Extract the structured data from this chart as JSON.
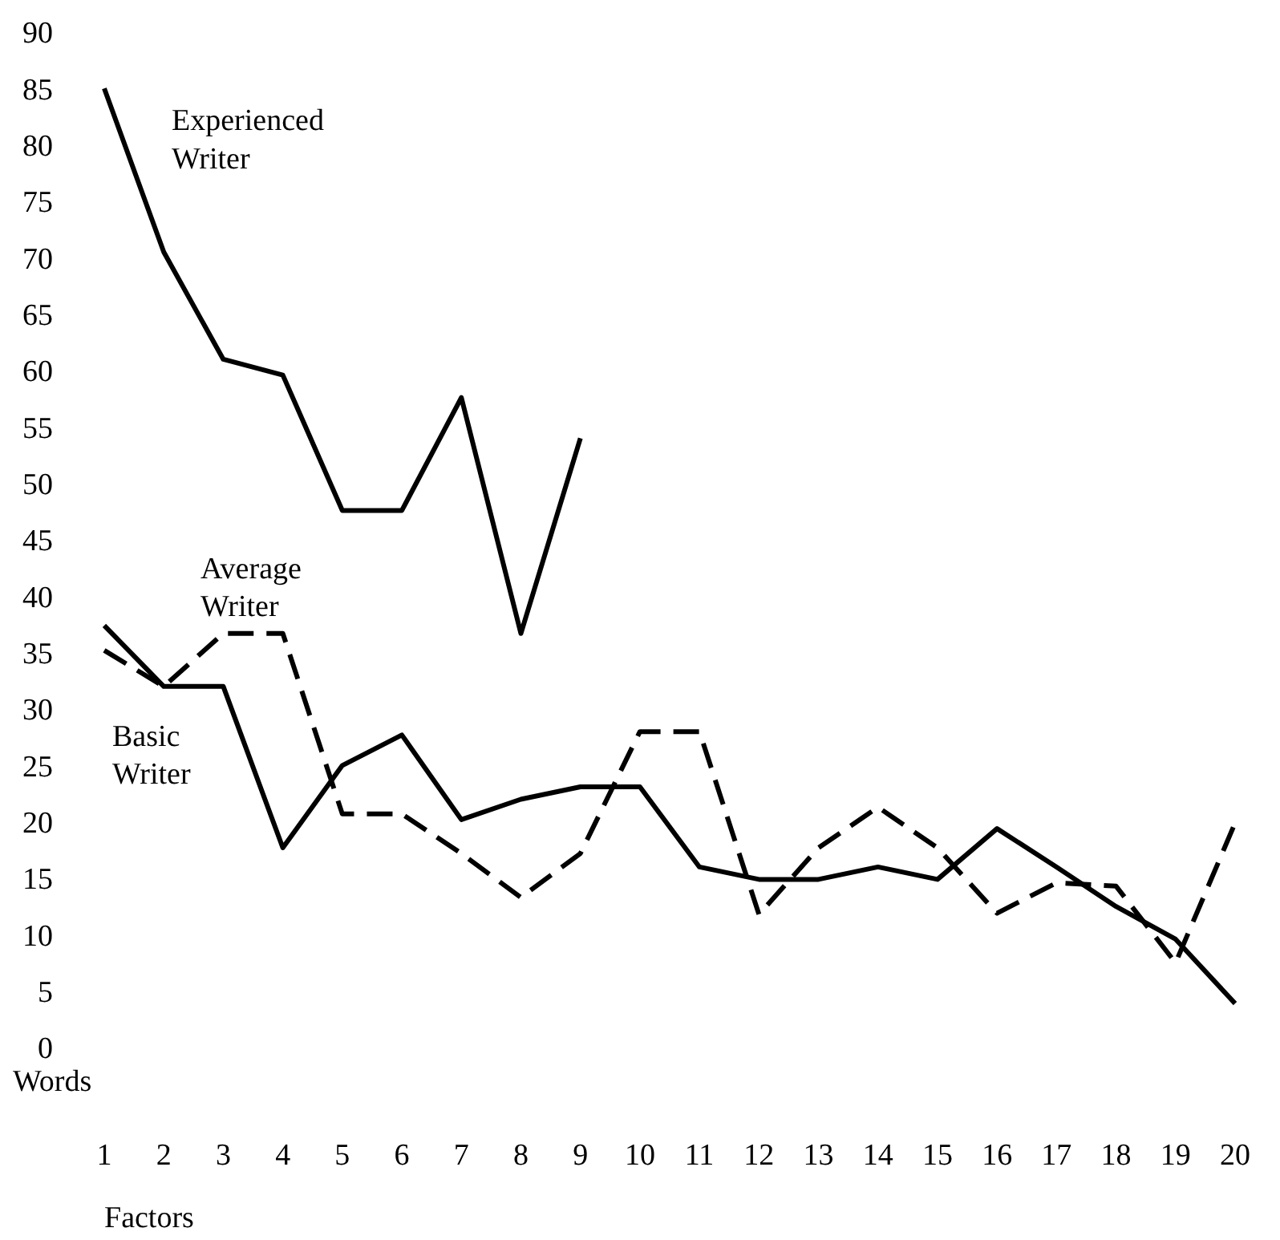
{
  "chart_data": {
    "type": "line",
    "xlabel": "Factors",
    "ylabel": "Words",
    "x": [
      1,
      2,
      3,
      4,
      5,
      6,
      7,
      8,
      9,
      10,
      11,
      12,
      13,
      14,
      15,
      16,
      17,
      18,
      19,
      20
    ],
    "xlim": [
      1,
      20
    ],
    "xticks": [
      1,
      2,
      3,
      4,
      5,
      6,
      7,
      8,
      9,
      10,
      11,
      12,
      13,
      14,
      15,
      16,
      17,
      18,
      19,
      20
    ],
    "ylim": [
      0,
      90
    ],
    "yticks": [
      0,
      5,
      10,
      15,
      20,
      25,
      30,
      35,
      40,
      45,
      50,
      55,
      60,
      65,
      70,
      75,
      80,
      85,
      90
    ],
    "grid": false,
    "legend": false,
    "marker": "none",
    "series": [
      {
        "name": "Experienced Writer",
        "color": "#000000",
        "line_style": "solid",
        "x": [
          1,
          2,
          3,
          4,
          5,
          6,
          7,
          8,
          9
        ],
        "values": [
          85,
          70.5,
          61,
          59.6,
          47.6,
          47.6,
          57.6,
          36.7,
          54
        ]
      },
      {
        "name": "Average Writer",
        "color": "#000000",
        "line_style": "dashed",
        "values": [
          35.2,
          32,
          36.7,
          36.7,
          20.7,
          20.7,
          17.2,
          13.3,
          17.2,
          28,
          28,
          11.8,
          17.7,
          21.3,
          17.7,
          11.9,
          14.6,
          14.3,
          7.5,
          19.9
        ]
      },
      {
        "name": "Basic Writer",
        "color": "#000000",
        "line_style": "solid",
        "values": [
          37.4,
          32,
          32,
          17.7,
          25,
          27.7,
          20.2,
          22,
          23.1,
          23.1,
          16,
          14.9,
          14.9,
          16,
          14.9,
          19.4,
          16,
          12.5,
          9.6,
          3.9
        ]
      }
    ]
  }
}
